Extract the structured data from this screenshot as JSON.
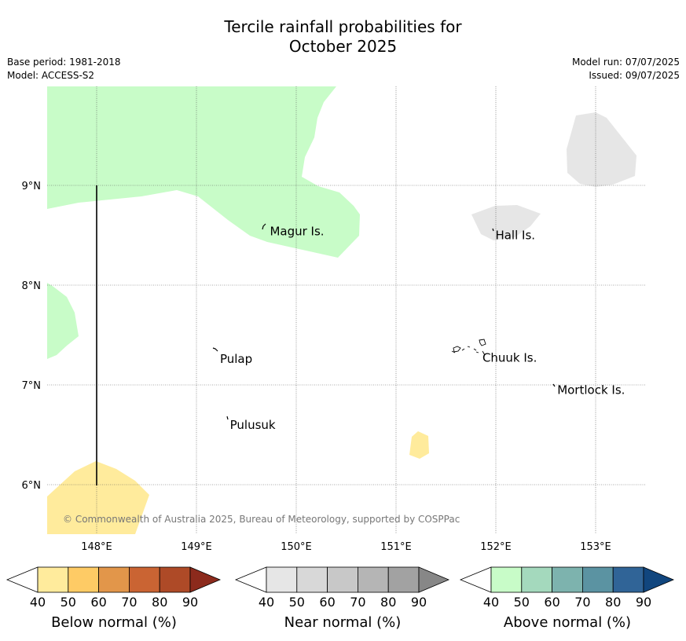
{
  "title": {
    "line1": "Tercile rainfall probabilities for",
    "line2": "October 2025"
  },
  "meta": {
    "base_period": "Base period: 1981-2018",
    "model": "Model: ACCESS-S2",
    "model_run": "Model run: 07/07/2025",
    "issued": "Issued: 09/07/2025"
  },
  "map": {
    "lon_ticks": [
      "148°E",
      "149°E",
      "150°E",
      "151°E",
      "152°E",
      "153°E"
    ],
    "lat_ticks": [
      "9°N",
      "8°N",
      "7°N",
      "6°N"
    ],
    "places": [
      {
        "name": "Magur Is.",
        "lon": 149.72,
        "lat": 8.54
      },
      {
        "name": "Hall Is.",
        "lon": 151.98,
        "lat": 8.5
      },
      {
        "name": "Pulap",
        "lon": 149.22,
        "lat": 7.26
      },
      {
        "name": "Chuuk Is.",
        "lon": 151.85,
        "lat": 7.27
      },
      {
        "name": "Mortlock Is.",
        "lon": 152.6,
        "lat": 6.95
      },
      {
        "name": "Pulusuk",
        "lon": 149.32,
        "lat": 6.6
      }
    ],
    "copyright": "© Commonwealth of Australia 2025, Bureau of Meteorology, supported by COSPPac",
    "colors": {
      "above_40_50": "#c8fcc8",
      "near_40_50": "#e6e6e6",
      "below_40_50": "#ffeb9c"
    }
  },
  "colorbars": [
    {
      "title": "Below normal (%)",
      "ticks": [
        "40",
        "50",
        "60",
        "70",
        "80",
        "90"
      ],
      "colors": [
        "#ffeb9c",
        "#fecb65",
        "#e2964a",
        "#ca6433",
        "#ae4a27",
        "#8c2a1c"
      ]
    },
    {
      "title": "Near normal (%)",
      "ticks": [
        "40",
        "50",
        "60",
        "70",
        "80",
        "90"
      ],
      "colors": [
        "#e6e6e6",
        "#d8d8d8",
        "#c8c8c8",
        "#b5b5b5",
        "#a2a2a2",
        "#878787"
      ]
    },
    {
      "title": "Above normal (%)",
      "ticks": [
        "40",
        "50",
        "60",
        "70",
        "80",
        "90"
      ],
      "colors": [
        "#c8fcc8",
        "#a4d9bd",
        "#7db3ae",
        "#5b93a2",
        "#306497",
        "#11467e"
      ]
    }
  ]
}
